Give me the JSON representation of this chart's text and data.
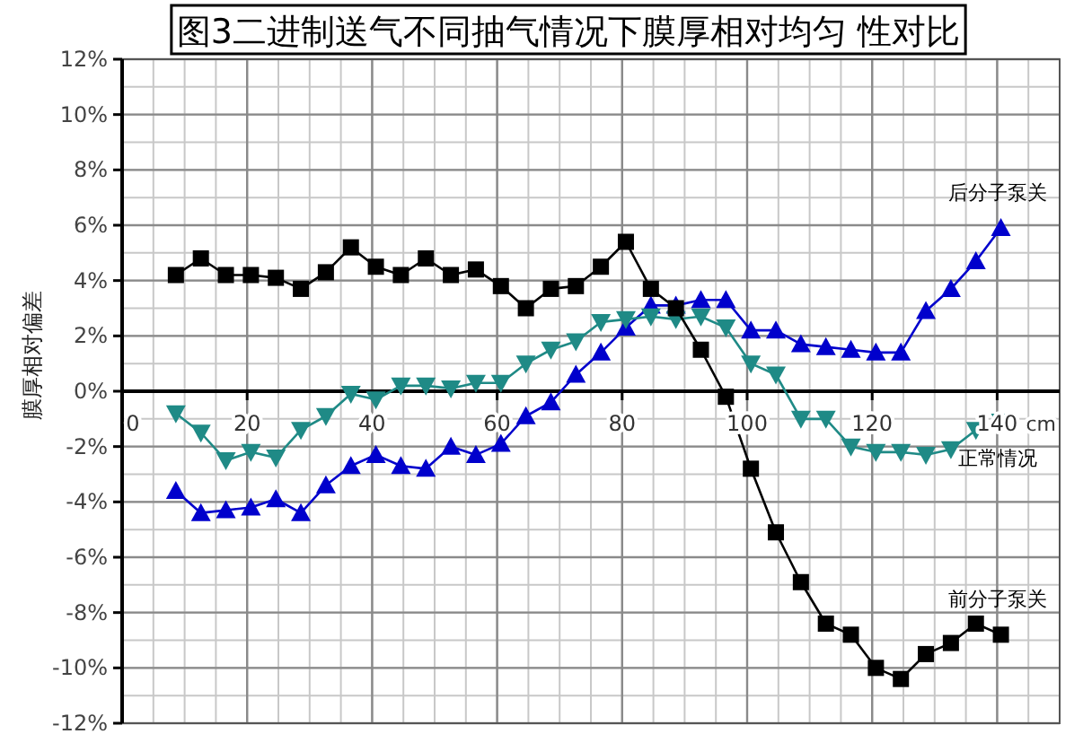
{
  "chart_data": {
    "type": "line",
    "title": "图3二进制送气不同抽气情况下膜厚相对均匀 性对比",
    "xlabel": "cm",
    "ylabel": "膜厚相对偏差",
    "x": [
      8.6,
      12.6,
      16.6,
      20.6,
      24.6,
      28.6,
      32.6,
      36.6,
      40.6,
      44.6,
      48.6,
      52.6,
      56.6,
      60.6,
      64.6,
      68.6,
      72.6,
      76.6,
      80.6,
      84.6,
      88.6,
      92.6,
      96.6,
      100.6,
      104.6,
      108.6,
      112.6,
      116.6,
      120.6,
      124.6,
      128.6,
      132.6,
      136.6,
      140.6
    ],
    "series": [
      {
        "name": "前分子泵关",
        "color": "#000000",
        "marker": "square",
        "values": [
          4.2,
          4.8,
          4.2,
          4.2,
          4.1,
          3.7,
          4.3,
          5.2,
          4.5,
          4.2,
          4.8,
          4.2,
          4.4,
          3.8,
          3.0,
          3.7,
          3.8,
          4.5,
          5.4,
          3.7,
          3.0,
          1.5,
          -0.2,
          -2.8,
          -5.1,
          -6.9,
          -8.4,
          -8.8,
          -10.0,
          -10.4,
          -9.5,
          -9.1,
          -8.4,
          -8.8
        ]
      },
      {
        "name": "正常情况",
        "color": "#1f8a86",
        "marker": "triangle-down",
        "values": [
          -0.8,
          -1.5,
          -2.5,
          -2.2,
          -2.4,
          -1.4,
          -0.9,
          -0.1,
          -0.3,
          0.2,
          0.2,
          0.1,
          0.3,
          0.3,
          1.0,
          1.5,
          1.8,
          2.5,
          2.6,
          2.7,
          2.6,
          2.7,
          2.3,
          1.0,
          0.6,
          -1.0,
          -1.0,
          -2.0,
          -2.2,
          -2.2,
          -2.3,
          -2.1,
          -1.4,
          -1.1
        ]
      },
      {
        "name": "后分子泵关",
        "color": "#0000cc",
        "marker": "triangle",
        "values": [
          -3.6,
          -4.4,
          -4.3,
          -4.2,
          -3.9,
          -4.4,
          -3.4,
          -2.7,
          -2.3,
          -2.7,
          -2.8,
          -2.0,
          -2.3,
          -1.9,
          -0.9,
          -0.4,
          0.6,
          1.4,
          2.3,
          3.1,
          3.1,
          3.3,
          3.3,
          2.2,
          2.2,
          1.7,
          1.6,
          1.5,
          1.4,
          1.4,
          2.9,
          3.7,
          4.7,
          5.9
        ]
      }
    ],
    "xlim": [
      0,
      150
    ],
    "xticks": [
      0,
      20,
      40,
      60,
      80,
      100,
      120,
      140
    ],
    "ylim": [
      -12,
      12
    ],
    "yticks": [
      {
        "value": -12,
        "label": "-12%"
      },
      {
        "value": -10,
        "label": "-10%"
      },
      {
        "value": -8,
        "label": "-8%"
      },
      {
        "value": -6,
        "label": "-6%"
      },
      {
        "value": -4,
        "label": "-4%"
      },
      {
        "value": -2,
        "label": "-2%"
      },
      {
        "value": 0,
        "label": "0%"
      },
      {
        "value": 2,
        "label": "2%"
      },
      {
        "value": 4,
        "label": "4%"
      },
      {
        "value": 6,
        "label": "6%"
      },
      {
        "value": 8,
        "label": "8%"
      },
      {
        "value": 10,
        "label": "10%"
      },
      {
        "value": 12,
        "label": "12%"
      }
    ],
    "grid": true
  }
}
